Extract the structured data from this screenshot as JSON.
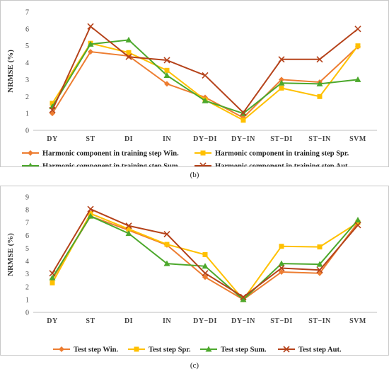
{
  "chart_data": [
    {
      "type": "line",
      "ylabel": "NRMSE (%)",
      "ylim": [
        0,
        7
      ],
      "yticks": [
        0,
        1,
        2,
        3,
        4,
        5,
        6,
        7
      ],
      "grid": false,
      "legend_position": "bottom",
      "categories": [
        "DY",
        "ST",
        "DI",
        "IN",
        "DY−DI",
        "DY−IN",
        "ST−DI",
        "ST−IN",
        "SVM"
      ],
      "series": [
        {
          "name": "Harmonic component in training step Win.",
          "color": "#ed7d31",
          "marker": "diamond",
          "values": [
            1.0,
            4.65,
            4.4,
            2.75,
            1.95,
            0.75,
            3.0,
            2.85,
            4.95
          ]
        },
        {
          "name": "Harmonic component in training step Spr.",
          "color": "#ffc000",
          "marker": "square",
          "values": [
            1.6,
            5.15,
            4.6,
            3.55,
            1.8,
            0.6,
            2.5,
            2.0,
            5.0
          ]
        },
        {
          "name": "Harmonic component in training step Sum.",
          "color": "#4ca82c",
          "marker": "triangle",
          "values": [
            1.4,
            5.1,
            5.35,
            3.25,
            1.75,
            1.0,
            2.8,
            2.75,
            3.0
          ]
        },
        {
          "name": "Harmonic component in training step Aut.",
          "color": "#b5421a",
          "marker": "x",
          "values": [
            1.2,
            6.15,
            4.35,
            4.15,
            3.25,
            1.05,
            4.2,
            4.2,
            6.0
          ]
        }
      ]
    },
    {
      "type": "line",
      "ylabel": "NRMSE (%)",
      "ylim": [
        0,
        9
      ],
      "yticks": [
        0,
        1,
        2,
        3,
        4,
        5,
        6,
        7,
        8,
        9
      ],
      "grid": false,
      "legend_position": "bottom",
      "categories": [
        "DY",
        "ST",
        "DI",
        "IN",
        "DY−DI",
        "DY−IN",
        "ST−DI",
        "ST−IN",
        "SVM"
      ],
      "series": [
        {
          "name": "Test step Win.",
          "color": "#ed7d31",
          "marker": "diamond",
          "values": [
            2.6,
            7.5,
            6.4,
            5.25,
            2.75,
            1.0,
            3.15,
            3.05,
            7.0
          ]
        },
        {
          "name": "Test step Spr.",
          "color": "#ffc000",
          "marker": "square",
          "values": [
            2.3,
            7.7,
            6.5,
            5.3,
            4.5,
            1.0,
            5.15,
            5.1,
            7.0
          ]
        },
        {
          "name": "Test step Sum.",
          "color": "#4ca82c",
          "marker": "triangle",
          "values": [
            2.7,
            7.5,
            6.15,
            3.8,
            3.6,
            1.0,
            3.8,
            3.75,
            7.2
          ]
        },
        {
          "name": "Test step Aut.",
          "color": "#b5421a",
          "marker": "x",
          "values": [
            3.05,
            8.05,
            6.75,
            6.1,
            3.05,
            1.2,
            3.45,
            3.3,
            6.8
          ]
        }
      ]
    }
  ],
  "captions": {
    "b": "(b)",
    "c": "(c)"
  }
}
